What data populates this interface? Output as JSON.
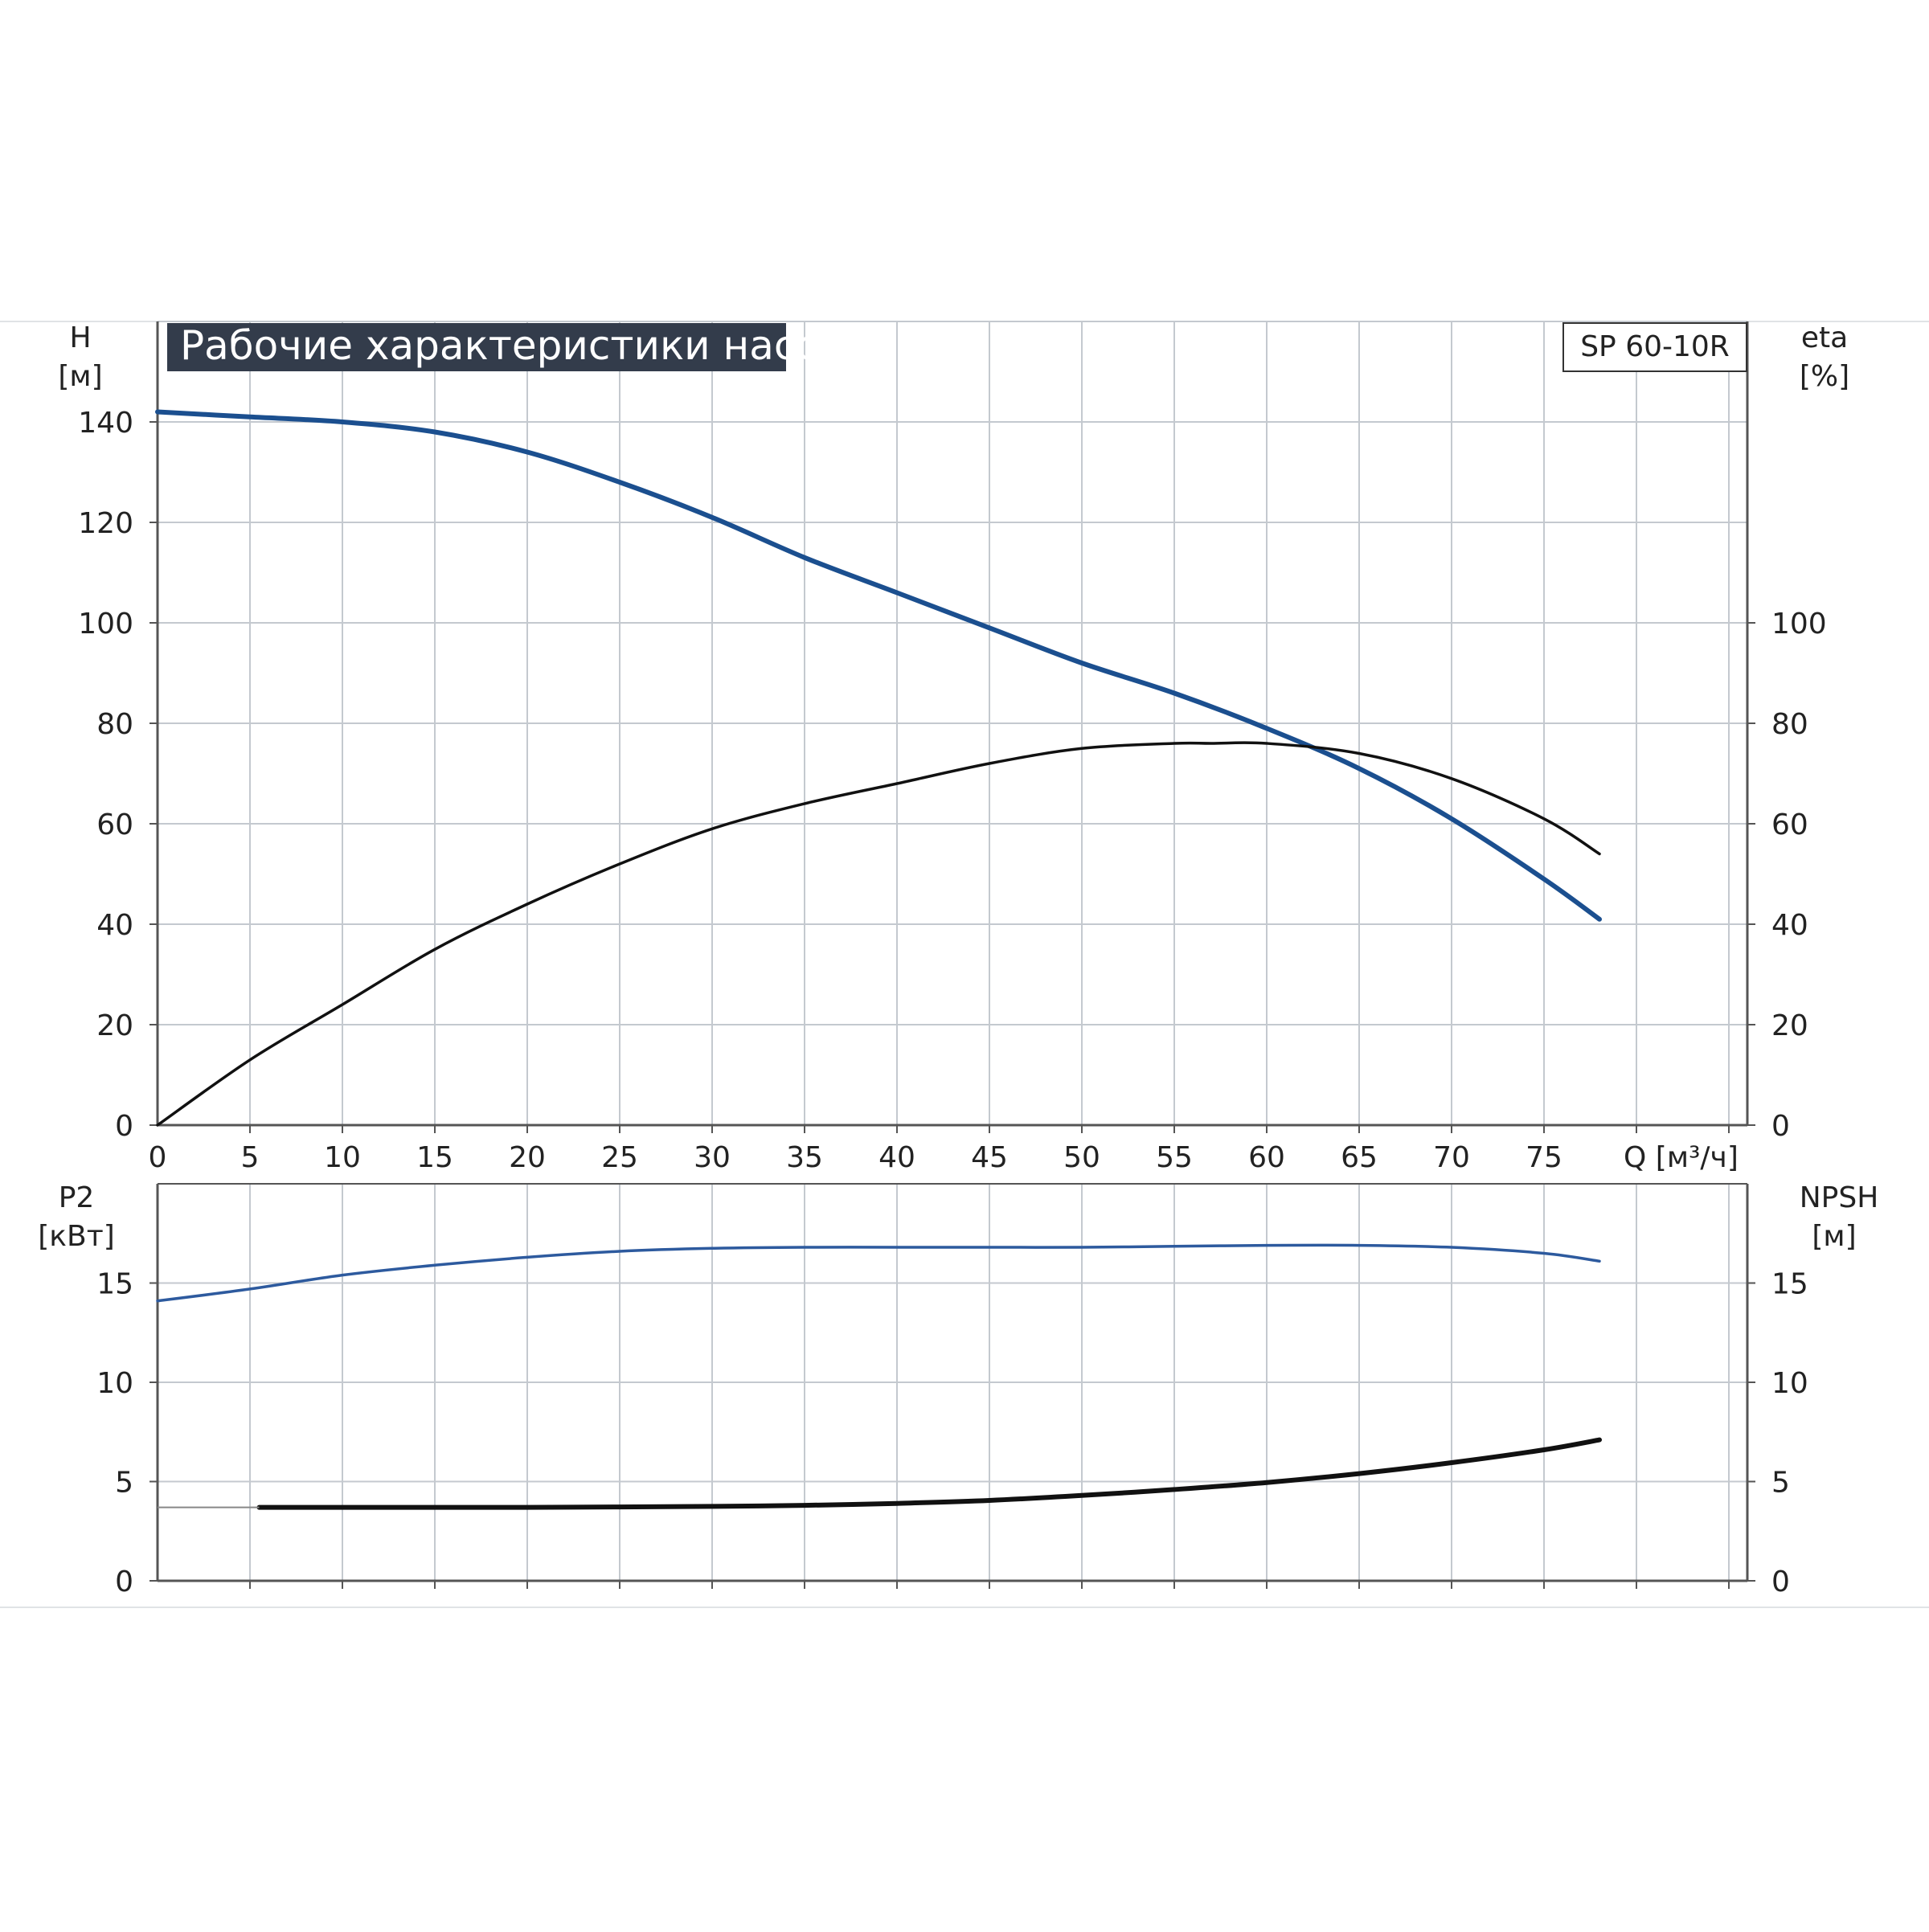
{
  "title": "Рабочие характеристики насоса",
  "model": "SP 60-10R",
  "colors": {
    "title_bg": "#333c4b",
    "grid": "#c4c9cf",
    "axis": "#555555",
    "head_curve": "#1b4f8f",
    "eta_curve": "#111111",
    "p2_curve": "#2d5a9e",
    "npsh_curve": "#111111"
  },
  "chart_data": [
    {
      "type": "line",
      "panel": "upper",
      "x_axis": {
        "label": "Q [м³/ч]",
        "ticks": [
          "0",
          "5",
          "10",
          "15",
          "20",
          "25",
          "30",
          "35",
          "40",
          "45",
          "50",
          "55",
          "60",
          "65",
          "70",
          "75"
        ],
        "range": [
          0,
          86
        ]
      },
      "y_axis_left": {
        "label_line1": "H",
        "label_line2": "[м]",
        "ticks": [
          "0",
          "20",
          "40",
          "60",
          "80",
          "100",
          "120",
          "140"
        ],
        "range": [
          0,
          160
        ]
      },
      "y_axis_right": {
        "label_line1": "eta",
        "label_line2": "[%]",
        "ticks": [
          "0",
          "20",
          "40",
          "60",
          "80",
          "100"
        ],
        "range": [
          0,
          160
        ]
      },
      "grid": true,
      "series": [
        {
          "axis": "left",
          "color": "#1b4f8f",
          "points": [
            [
              0,
              142
            ],
            [
              5,
              141
            ],
            [
              10,
              140
            ],
            [
              15,
              138
            ],
            [
              20,
              134
            ],
            [
              25,
              128
            ],
            [
              30,
              121
            ],
            [
              35,
              113
            ],
            [
              40,
              106
            ],
            [
              45,
              99
            ],
            [
              50,
              92
            ],
            [
              55,
              86
            ],
            [
              60,
              79
            ],
            [
              65,
              71
            ],
            [
              70,
              61
            ],
            [
              75,
              49
            ],
            [
              78,
              41
            ]
          ]
        },
        {
          "axis": "right",
          "color": "#111111",
          "points": [
            [
              0,
              0
            ],
            [
              5,
              13
            ],
            [
              10,
              24
            ],
            [
              15,
              35
            ],
            [
              20,
              44
            ],
            [
              25,
              52
            ],
            [
              30,
              59
            ],
            [
              35,
              64
            ],
            [
              40,
              68
            ],
            [
              45,
              72
            ],
            [
              50,
              75
            ],
            [
              55,
              76
            ],
            [
              57,
              76
            ],
            [
              60,
              76
            ],
            [
              65,
              74
            ],
            [
              70,
              69
            ],
            [
              75,
              61
            ],
            [
              78,
              54
            ]
          ]
        }
      ]
    },
    {
      "type": "line",
      "panel": "lower",
      "x_axis": {
        "range": [
          0,
          86
        ]
      },
      "y_axis_left": {
        "label_line1": "P2",
        "label_line2": "[кВт]",
        "ticks": [
          "0",
          "5",
          "10",
          "15"
        ],
        "range": [
          0,
          20
        ]
      },
      "y_axis_right": {
        "label_line1": "NPSH",
        "label_line2": "[м]",
        "ticks": [
          "0",
          "5",
          "10",
          "15"
        ],
        "range": [
          0,
          20
        ]
      },
      "grid": true,
      "series": [
        {
          "axis": "left",
          "color": "#2d5a9e",
          "points": [
            [
              0,
              14.1
            ],
            [
              5,
              14.7
            ],
            [
              10,
              15.4
            ],
            [
              15,
              15.9
            ],
            [
              20,
              16.3
            ],
            [
              25,
              16.6
            ],
            [
              30,
              16.75
            ],
            [
              35,
              16.8
            ],
            [
              40,
              16.8
            ],
            [
              45,
              16.8
            ],
            [
              50,
              16.8
            ],
            [
              55,
              16.85
            ],
            [
              60,
              16.9
            ],
            [
              65,
              16.9
            ],
            [
              70,
              16.8
            ],
            [
              75,
              16.5
            ],
            [
              78,
              16.1
            ]
          ]
        },
        {
          "axis": "right",
          "color": "#111111",
          "points": [
            [
              5.5,
              3.7
            ],
            [
              10,
              3.7
            ],
            [
              15,
              3.7
            ],
            [
              20,
              3.7
            ],
            [
              25,
              3.72
            ],
            [
              30,
              3.75
            ],
            [
              35,
              3.8
            ],
            [
              40,
              3.9
            ],
            [
              45,
              4.05
            ],
            [
              50,
              4.3
            ],
            [
              55,
              4.6
            ],
            [
              60,
              4.95
            ],
            [
              65,
              5.4
            ],
            [
              70,
              5.95
            ],
            [
              75,
              6.6
            ],
            [
              78,
              7.1
            ]
          ]
        }
      ]
    }
  ]
}
